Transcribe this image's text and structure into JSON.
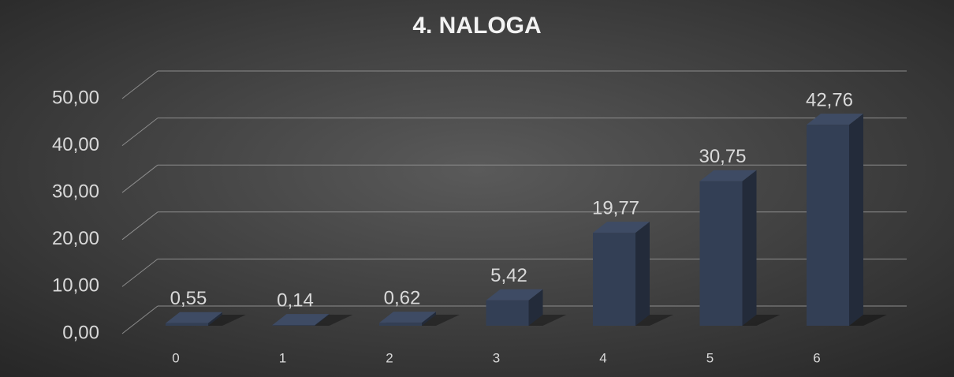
{
  "chart_data": {
    "type": "bar3d",
    "title": "4. NALOGA",
    "categories": [
      "0",
      "1",
      "2",
      "3",
      "4",
      "5",
      "6"
    ],
    "values": [
      0.55,
      0.14,
      0.62,
      5.42,
      19.77,
      30.75,
      42.76
    ],
    "value_labels": [
      "0,55",
      "0,14",
      "0,62",
      "5,42",
      "19,77",
      "30,75",
      "42,76"
    ],
    "color": "#333f55",
    "ylim": [
      0,
      50
    ],
    "yticks": [
      {
        "value": 0,
        "label": "0,00"
      },
      {
        "value": 10,
        "label": "10,00"
      },
      {
        "value": 20,
        "label": "20,00"
      },
      {
        "value": 30,
        "label": "30,00"
      },
      {
        "value": 40,
        "label": "40,00"
      },
      {
        "value": 50,
        "label": "50,00"
      }
    ],
    "grid": true
  }
}
